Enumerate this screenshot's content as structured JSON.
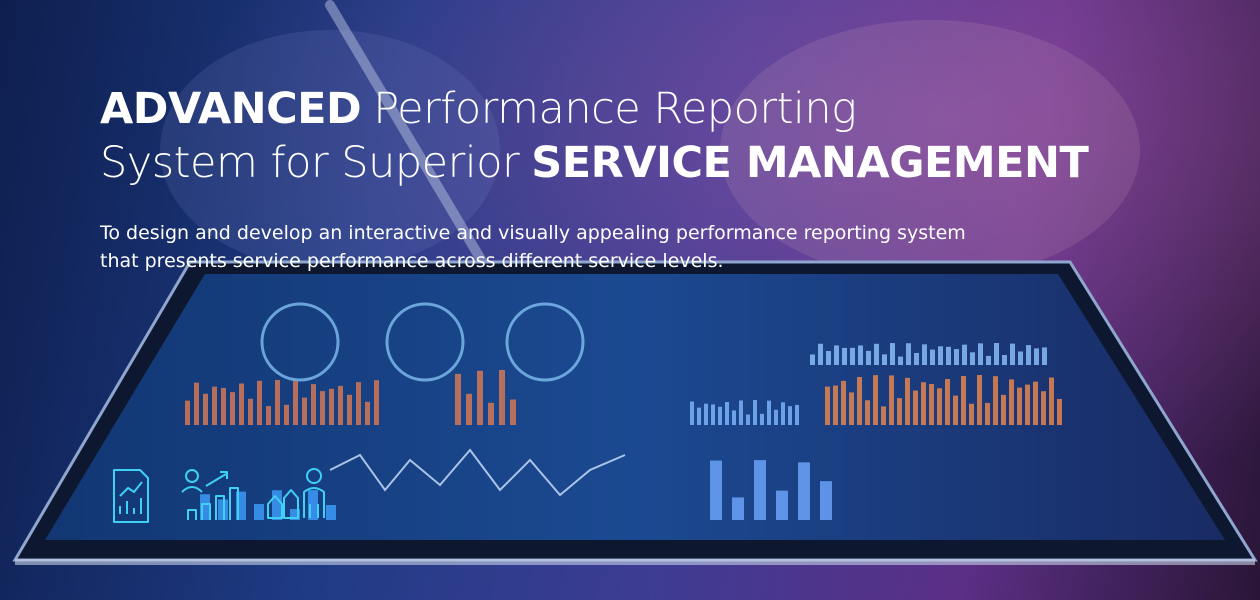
{
  "header": {
    "title": [
      [
        {
          "text": "ADVANCED",
          "strong": true
        },
        {
          "text": "Performance Reporting",
          "strong": false
        }
      ],
      [
        {
          "text": "System for Superior",
          "strong": false
        },
        {
          "text": "SERVICE MANAGEMENT",
          "strong": true
        }
      ]
    ],
    "subtitle": [
      "To design and develop an interactive and visually appealing performance reporting system",
      "that presents service performance across different service levels."
    ]
  }
}
